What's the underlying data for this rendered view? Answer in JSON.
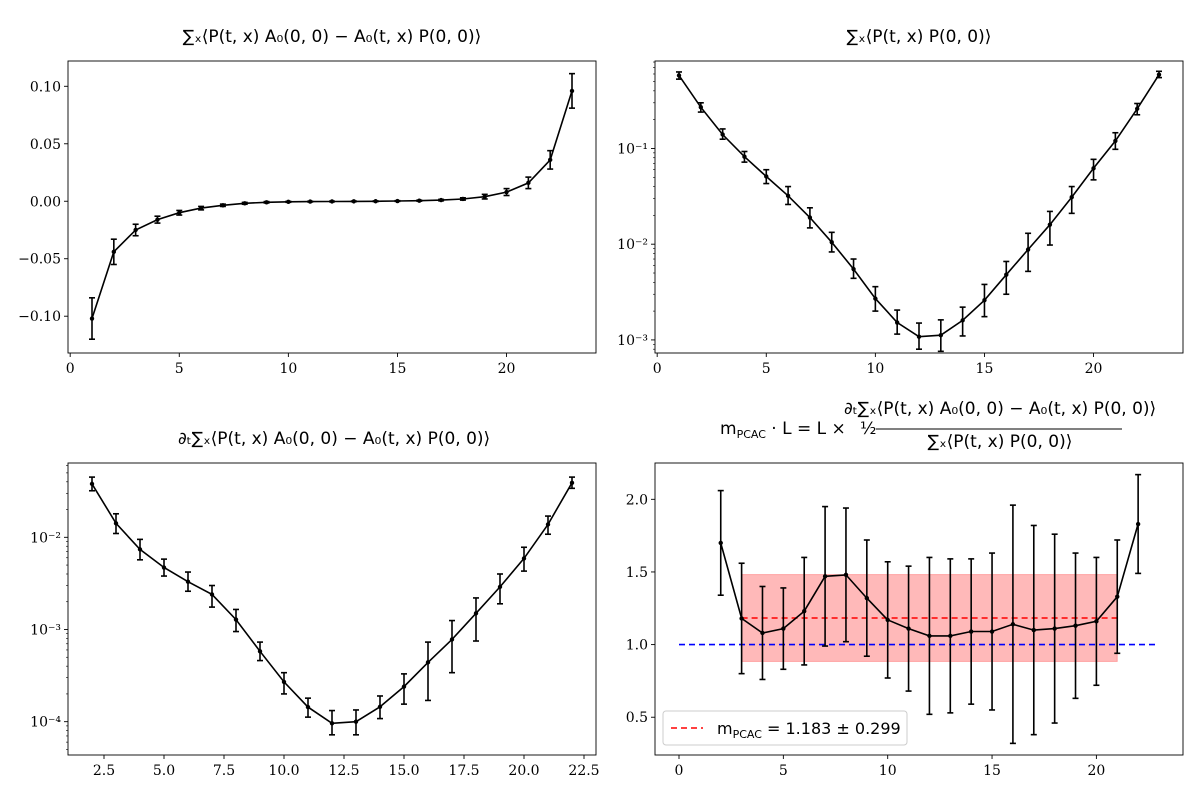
{
  "chart_data": [
    {
      "id": "p1",
      "type": "line",
      "title": "∑ₓ⟨P(t, x) A₀(0, 0) − A₀(t, x) P(0, 0)⟩",
      "yscale": "linear",
      "xlim": [
        -0.1,
        24.1
      ],
      "ylim": [
        -0.132,
        0.122
      ],
      "xticks": [
        0,
        5,
        10,
        15,
        20
      ],
      "xtick_labels": [
        "0",
        "5",
        "10",
        "15",
        "20"
      ],
      "yticks": [
        -0.1,
        -0.05,
        0.0,
        0.05,
        0.1
      ],
      "ytick_labels": [
        "−0.10",
        "−0.05",
        "0.00",
        "0.05",
        "0.10"
      ],
      "line_color": "#000000",
      "series": [
        {
          "x": [
            1,
            2,
            3,
            4,
            5,
            6,
            7,
            8,
            9,
            10,
            11,
            12,
            13,
            14,
            15,
            16,
            17,
            18,
            19,
            20,
            21,
            22,
            23
          ],
          "y": [
            -0.102,
            -0.044,
            -0.025,
            -0.016,
            -0.01,
            -0.006,
            -0.0035,
            -0.0018,
            -0.0009,
            -0.0005,
            -0.0003,
            -0.0002,
            -0.0001,
            0.0,
            0.0002,
            0.0005,
            0.001,
            0.002,
            0.004,
            0.008,
            0.016,
            0.036,
            0.096
          ],
          "err": [
            0.018,
            0.011,
            0.005,
            0.003,
            0.002,
            0.0015,
            0.001,
            0.0008,
            0.0006,
            0.0004,
            0.0003,
            0.0003,
            0.0003,
            0.0003,
            0.0003,
            0.0004,
            0.0006,
            0.001,
            0.002,
            0.003,
            0.005,
            0.008,
            0.015
          ]
        }
      ]
    },
    {
      "id": "p2",
      "type": "line",
      "title": "∑ₓ⟨P(t, x) P(0, 0)⟩",
      "yscale": "log",
      "xlim": [
        -0.1,
        24.1
      ],
      "ylim": [
        0.00073,
        0.82
      ],
      "xticks": [
        0,
        5,
        10,
        15,
        20
      ],
      "xtick_labels": [
        "0",
        "5",
        "10",
        "15",
        "20"
      ],
      "yticks": [
        0.001,
        0.01,
        0.1
      ],
      "ytick_labels": [
        "10⁻³",
        "10⁻²",
        "10⁻¹"
      ],
      "line_color": "#000000",
      "series": [
        {
          "x": [
            1,
            2,
            3,
            4,
            5,
            6,
            7,
            8,
            9,
            10,
            11,
            12,
            13,
            14,
            15,
            16,
            17,
            18,
            19,
            20,
            21,
            22,
            23
          ],
          "y": [
            0.58,
            0.27,
            0.14,
            0.082,
            0.051,
            0.032,
            0.019,
            0.0105,
            0.0055,
            0.0027,
            0.00152,
            0.00108,
            0.00112,
            0.0016,
            0.0026,
            0.0048,
            0.0088,
            0.016,
            0.031,
            0.062,
            0.12,
            0.26,
            0.59
          ],
          "lo": [
            0.53,
            0.24,
            0.125,
            0.072,
            0.043,
            0.026,
            0.0148,
            0.0083,
            0.0044,
            0.002,
            0.00115,
            0.0008,
            0.00076,
            0.0011,
            0.00175,
            0.003,
            0.0052,
            0.0098,
            0.021,
            0.047,
            0.098,
            0.225,
            0.55
          ],
          "hi": [
            0.63,
            0.3,
            0.16,
            0.093,
            0.06,
            0.04,
            0.024,
            0.0133,
            0.007,
            0.0036,
            0.00205,
            0.0015,
            0.00162,
            0.0022,
            0.0038,
            0.0066,
            0.013,
            0.022,
            0.04,
            0.077,
            0.146,
            0.295,
            0.64
          ]
        }
      ]
    },
    {
      "id": "p3",
      "type": "line",
      "title": "∂ₜ∑ₓ⟨P(t, x) A₀(0, 0) − A₀(t, x) P(0, 0)⟩",
      "yscale": "log",
      "xlim": [
        1.0,
        23.0
      ],
      "ylim": [
        4.35e-05,
        0.064
      ],
      "xticks": [
        2.5,
        5.0,
        7.5,
        10.0,
        12.5,
        15.0,
        17.5,
        20.0,
        22.5
      ],
      "xtick_labels": [
        "2.5",
        "5.0",
        "7.5",
        "10.0",
        "12.5",
        "15.0",
        "17.5",
        "20.0",
        "22.5"
      ],
      "yticks": [
        0.0001,
        0.001,
        0.01
      ],
      "ytick_labels": [
        "10⁻⁴",
        "10⁻³",
        "10⁻²"
      ],
      "line_color": "#000000",
      "series": [
        {
          "x": [
            2,
            3,
            4,
            5,
            6,
            7,
            8,
            9,
            10,
            11,
            12,
            13,
            14,
            15,
            16,
            17,
            18,
            19,
            20,
            21,
            22
          ],
          "y": [
            0.038,
            0.0142,
            0.0074,
            0.0047,
            0.0033,
            0.0024,
            0.00128,
            0.00058,
            0.00027,
            0.000144,
            9.6e-05,
            0.0001,
            0.000145,
            0.00024,
            0.00044,
            0.00078,
            0.0015,
            0.0029,
            0.0059,
            0.0138,
            0.039
          ],
          "lo": [
            0.032,
            0.011,
            0.0057,
            0.0038,
            0.0026,
            0.00175,
            0.00095,
            0.00046,
            0.0002,
            0.000112,
            7.2e-05,
            7.2e-05,
            0.000108,
            0.000155,
            0.00017,
            0.00034,
            0.00075,
            0.0019,
            0.0043,
            0.0108,
            0.034
          ],
          "hi": [
            0.045,
            0.018,
            0.0095,
            0.0058,
            0.0042,
            0.003,
            0.00165,
            0.00073,
            0.00034,
            0.00018,
            0.000132,
            0.000134,
            0.00019,
            0.00033,
            0.00073,
            0.00125,
            0.0022,
            0.004,
            0.0078,
            0.017,
            0.045
          ]
        }
      ]
    },
    {
      "id": "p4",
      "type": "line",
      "title": "m_PCAC · L = L × ½ ∂ₜ∑ₓ⟨P(t, x) A₀(0, 0) − A₀(t, x) P(0, 0)⟩ / ∑ₓ⟨P(t, x) P(0, 0)⟩",
      "title_lhs": "m",
      "title_sub": "PCAC",
      "title_mid": " · L = L × ",
      "title_half": "½",
      "title_num": "∂ₜ∑ₓ⟨P(t, x) A₀(0, 0) − A₀(t, x) P(0, 0)⟩",
      "title_den": "∑ₓ⟨P(t, x) P(0, 0)⟩",
      "yscale": "linear",
      "xlim": [
        -1.15,
        24.15
      ],
      "ylim": [
        0.24,
        2.25
      ],
      "xticks": [
        0,
        5,
        10,
        15,
        20
      ],
      "xtick_labels": [
        "0",
        "5",
        "10",
        "15",
        "20"
      ],
      "yticks": [
        0.5,
        1.0,
        1.5,
        2.0
      ],
      "ytick_labels": [
        "0.5",
        "1.0",
        "1.5",
        "2.0"
      ],
      "line_color": "#000000",
      "series": [
        {
          "x": [
            2,
            3,
            4,
            5,
            6,
            7,
            8,
            9,
            10,
            11,
            12,
            13,
            14,
            15,
            16,
            17,
            18,
            19,
            20,
            21,
            22
          ],
          "y": [
            1.7,
            1.18,
            1.08,
            1.11,
            1.23,
            1.47,
            1.48,
            1.32,
            1.17,
            1.11,
            1.06,
            1.06,
            1.09,
            1.09,
            1.14,
            1.1,
            1.11,
            1.13,
            1.16,
            1.33,
            1.83
          ],
          "err": [
            0.36,
            0.38,
            0.32,
            0.28,
            0.37,
            0.48,
            0.46,
            0.4,
            0.4,
            0.43,
            0.54,
            0.53,
            0.5,
            0.54,
            0.82,
            0.72,
            0.65,
            0.5,
            0.44,
            0.39,
            0.34
          ]
        }
      ],
      "fit": {
        "value": 1.183,
        "error": 0.299,
        "x_range": [
          3,
          21
        ],
        "color": "#ff0000",
        "band_color": "#ff7f7f"
      },
      "reference": {
        "value": 1.0,
        "x_range": [
          0,
          23
        ],
        "color": "#0000ff"
      },
      "legend": {
        "position": "lower-left",
        "label_prefix": "m",
        "label_sub": "PCAC",
        "label_suffix": " = 1.183 ± 0.299"
      }
    }
  ]
}
